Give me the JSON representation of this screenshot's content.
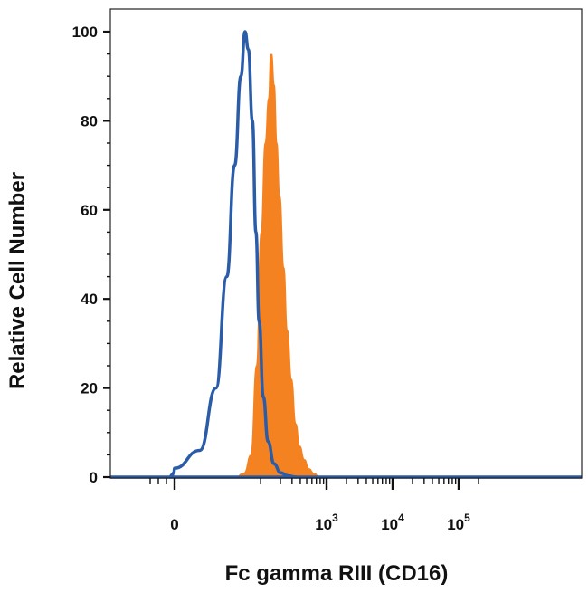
{
  "chart_data": {
    "type": "area",
    "xlabel": "Fc gamma RIII (CD16)",
    "ylabel": "Relative Cell Number",
    "ylim": [
      0,
      100
    ],
    "xscale": "biexponential",
    "yticks": [
      0,
      20,
      40,
      60,
      80,
      100
    ],
    "ytick_labels": [
      "0",
      "20",
      "40",
      "60",
      "80",
      "100"
    ],
    "xticks": [
      {
        "value": 0,
        "base": "0",
        "exp": ""
      },
      {
        "value": 1000,
        "base": "10",
        "exp": "3"
      },
      {
        "value": 10000,
        "base": "10",
        "exp": "4"
      },
      {
        "value": 100000,
        "base": "10",
        "exp": "5"
      }
    ],
    "grid": false,
    "legend": "none",
    "series": [
      {
        "style": "filled",
        "color": "#F58220",
        "x": [
          40,
          55,
          70,
          85,
          100,
          115,
          130,
          140,
          150,
          165,
          180,
          200,
          230,
          260,
          300,
          350,
          400,
          470,
          550,
          650,
          800
        ],
        "y": [
          0,
          1,
          5,
          25,
          55,
          75,
          85,
          95,
          95,
          88,
          75,
          63,
          47,
          33,
          22,
          12,
          7,
          4,
          2,
          1,
          0
        ]
      },
      {
        "style": "outline",
        "color": "#2B5CA8",
        "x": [
          -60,
          -30,
          -10,
          0,
          10,
          20,
          30,
          40,
          50,
          58,
          65,
          75,
          85,
          95,
          110,
          130,
          160,
          200,
          260,
          350
        ],
        "y": [
          0,
          0.5,
          1,
          2,
          6,
          20,
          45,
          70,
          90,
          100,
          96,
          80,
          55,
          35,
          18,
          8,
          3,
          1,
          0.3,
          0
        ]
      }
    ]
  }
}
